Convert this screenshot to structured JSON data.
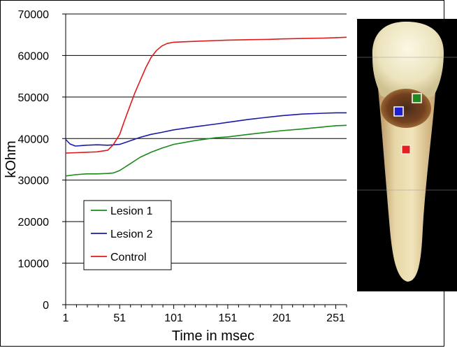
{
  "chart_data": {
    "type": "line",
    "xlabel": "Time in msec",
    "ylabel": "kOhm",
    "xlim": [
      1,
      261
    ],
    "ylim": [
      0,
      70000
    ],
    "x_ticks": [
      "1",
      "51",
      "101",
      "151",
      "201",
      "251"
    ],
    "y_ticks": [
      "0",
      "10000",
      "20000",
      "30000",
      "40000",
      "50000",
      "60000",
      "70000"
    ],
    "grid": "horizontal",
    "legend_position": "lower-left",
    "series": [
      {
        "name": "Lesion 1",
        "color": "#1a8a1a",
        "x": [
          1,
          10,
          20,
          30,
          40,
          45,
          51,
          60,
          70,
          80,
          90,
          101,
          120,
          140,
          151,
          170,
          190,
          201,
          220,
          240,
          251,
          261
        ],
        "y": [
          31000,
          31300,
          31500,
          31500,
          31600,
          31700,
          32300,
          33800,
          35500,
          36700,
          37700,
          38600,
          39500,
          40200,
          40400,
          41000,
          41600,
          41900,
          42300,
          42800,
          43100,
          43200
        ]
      },
      {
        "name": "Lesion 2",
        "color": "#1a1aa8",
        "x": [
          1,
          5,
          10,
          15,
          20,
          30,
          40,
          51,
          60,
          70,
          80,
          90,
          101,
          120,
          140,
          151,
          170,
          190,
          201,
          220,
          240,
          251,
          261
        ],
        "y": [
          39800,
          38700,
          38200,
          38300,
          38400,
          38500,
          38400,
          38600,
          39400,
          40300,
          41000,
          41500,
          42100,
          42800,
          43500,
          43900,
          44600,
          45200,
          45500,
          45900,
          46100,
          46200,
          46200
        ]
      },
      {
        "name": "Control",
        "color": "#e01a1a",
        "x": [
          1,
          10,
          20,
          30,
          40,
          45,
          51,
          55,
          60,
          65,
          70,
          75,
          80,
          85,
          90,
          95,
          101,
          120,
          140,
          151,
          170,
          190,
          201,
          220,
          240,
          251,
          261
        ],
        "y": [
          36500,
          36600,
          36700,
          36800,
          37200,
          38500,
          41000,
          44000,
          47500,
          51000,
          54000,
          57000,
          59500,
          61200,
          62300,
          62900,
          63200,
          63400,
          63600,
          63700,
          63800,
          63900,
          64000,
          64100,
          64200,
          64300,
          64400
        ]
      }
    ]
  },
  "photo": {
    "markers": [
      {
        "color": "#1f8a1f"
      },
      {
        "color": "#1f1fd0"
      },
      {
        "color": "#e01f1f"
      }
    ]
  }
}
